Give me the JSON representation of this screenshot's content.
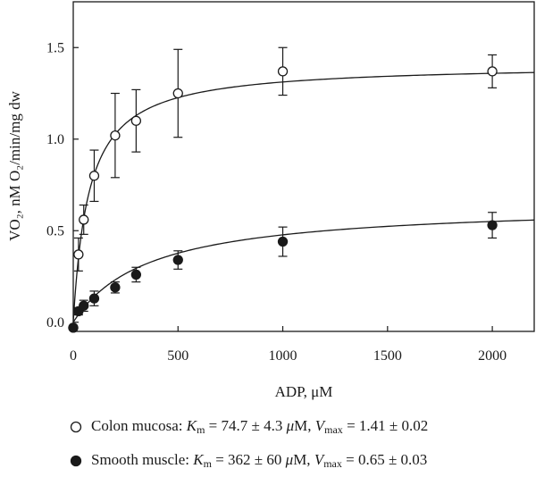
{
  "chart_data": {
    "type": "scatter",
    "xlabel": "ADP, μM",
    "ylabel": "VO₂, nM O₂/min/mg dw",
    "xlim": [
      0,
      2200
    ],
    "ylim": [
      -0.05,
      1.75
    ],
    "x_ticks": [
      "0",
      "500",
      "1000",
      "1500",
      "2000"
    ],
    "y_ticks": [
      "0.0",
      "0.5",
      "1.0",
      "1.5"
    ],
    "grid": false,
    "legend_position": "bottom",
    "series": [
      {
        "name": "Colon mucosa",
        "marker": "open-circle",
        "fit": {
          "model": "michaelis-menten",
          "Km": 74.7,
          "Vmax": 1.41
        },
        "legend_text": {
          "label": "Colon mucosa:",
          "km_symbol": "K",
          "km_sub": "m",
          "km_value": "= 74.7 ± 4.3",
          "km_unit_mu": "μ",
          "km_unit": "M,",
          "vmax_symbol": "V",
          "vmax_sub": "max",
          "vmax_value": "= 1.41 ±  0.02"
        },
        "points": [
          {
            "x": 0,
            "y": -0.03,
            "err": 0.0
          },
          {
            "x": 25,
            "y": 0.37,
            "err": 0.09
          },
          {
            "x": 50,
            "y": 0.56,
            "err": 0.08
          },
          {
            "x": 100,
            "y": 0.8,
            "err": 0.14
          },
          {
            "x": 200,
            "y": 1.02,
            "err": 0.23
          },
          {
            "x": 300,
            "y": 1.1,
            "err": 0.17
          },
          {
            "x": 500,
            "y": 1.25,
            "err": 0.24
          },
          {
            "x": 1000,
            "y": 1.37,
            "err": 0.13
          },
          {
            "x": 2000,
            "y": 1.37,
            "err": 0.09
          }
        ]
      },
      {
        "name": "Smooth muscle",
        "marker": "filled-circle",
        "fit": {
          "model": "michaelis-menten",
          "Km": 362,
          "Vmax": 0.65
        },
        "legend_text": {
          "label": "Smooth muscle:",
          "km_symbol": "K",
          "km_sub": "m",
          "km_value": "= 362 ± 60",
          "km_unit_mu": "μ",
          "km_unit": "M,",
          "vmax_symbol": "V",
          "vmax_sub": "max",
          "vmax_value": "= 0.65 ± 0.03"
        },
        "points": [
          {
            "x": 0,
            "y": -0.03,
            "err": 0.0
          },
          {
            "x": 25,
            "y": 0.06,
            "err": 0.02
          },
          {
            "x": 50,
            "y": 0.09,
            "err": 0.03
          },
          {
            "x": 100,
            "y": 0.13,
            "err": 0.04
          },
          {
            "x": 200,
            "y": 0.19,
            "err": 0.03
          },
          {
            "x": 300,
            "y": 0.26,
            "err": 0.04
          },
          {
            "x": 500,
            "y": 0.34,
            "err": 0.05
          },
          {
            "x": 1000,
            "y": 0.44,
            "err": 0.08
          },
          {
            "x": 2000,
            "y": 0.53,
            "err": 0.07
          }
        ]
      }
    ]
  },
  "colors": {
    "ink": "#1a1a1a",
    "background": "#ffffff"
  }
}
